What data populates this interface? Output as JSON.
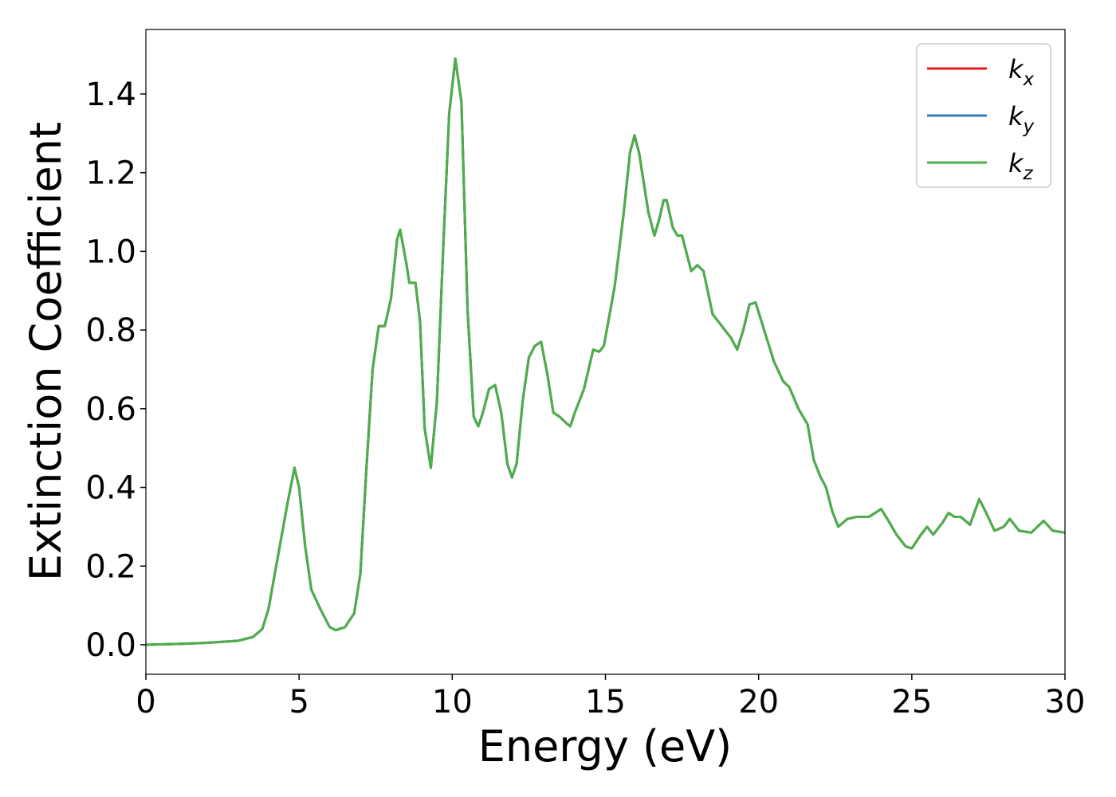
{
  "chart_data": {
    "type": "line",
    "xlabel": "Energy (eV)",
    "ylabel": "Extinction Coefficient",
    "xlim": [
      0,
      30
    ],
    "ylim": [
      -0.075,
      1.564
    ],
    "xticks": [
      0,
      5,
      10,
      15,
      20,
      25,
      30
    ],
    "yticks": [
      {
        "value": 0,
        "label": "0.0"
      },
      {
        "value": 0.2,
        "label": "0.2"
      },
      {
        "value": 0.4,
        "label": "0.4"
      },
      {
        "value": 0.6,
        "label": "0.6"
      },
      {
        "value": 0.8,
        "label": "0.8"
      },
      {
        "value": 1.0,
        "label": "1.0"
      },
      {
        "value": 1.2,
        "label": "1.2"
      },
      {
        "value": 1.4,
        "label": "1.4"
      }
    ],
    "legend": "upper right",
    "x": [
      0,
      1,
      2,
      3,
      3.5,
      3.8,
      4.0,
      4.3,
      4.6,
      4.85,
      5.0,
      5.2,
      5.4,
      5.7,
      6.0,
      6.2,
      6.5,
      6.8,
      7.0,
      7.2,
      7.4,
      7.6,
      7.8,
      8.0,
      8.2,
      8.3,
      8.5,
      8.6,
      8.8,
      8.95,
      9.1,
      9.3,
      9.5,
      9.7,
      9.9,
      10.1,
      10.3,
      10.5,
      10.7,
      10.85,
      11.0,
      11.2,
      11.4,
      11.6,
      11.8,
      11.95,
      12.1,
      12.3,
      12.5,
      12.7,
      12.9,
      13.1,
      13.3,
      13.5,
      13.7,
      13.85,
      14.0,
      14.3,
      14.6,
      14.8,
      14.95,
      15.3,
      15.6,
      15.8,
      15.95,
      16.1,
      16.4,
      16.6,
      16.75,
      16.9,
      17.0,
      17.2,
      17.35,
      17.5,
      17.8,
      18.0,
      18.2,
      18.5,
      18.8,
      19.1,
      19.3,
      19.5,
      19.7,
      19.9,
      20.1,
      20.5,
      20.8,
      21.0,
      21.3,
      21.6,
      21.8,
      22.0,
      22.2,
      22.4,
      22.6,
      22.9,
      23.2,
      23.6,
      23.8,
      24.0,
      24.2,
      24.5,
      24.8,
      25.0,
      25.3,
      25.5,
      25.7,
      26.0,
      26.2,
      26.4,
      26.6,
      26.9,
      27.2,
      27.4,
      27.7,
      28.0,
      28.2,
      28.5,
      28.9,
      29.1,
      29.3,
      29.6,
      30.0
    ],
    "series": [
      {
        "name": "kx",
        "color": "#e41a1c",
        "values": [
          0.0,
          0.002,
          0.005,
          0.01,
          0.02,
          0.04,
          0.09,
          0.22,
          0.35,
          0.45,
          0.4,
          0.25,
          0.14,
          0.09,
          0.045,
          0.037,
          0.045,
          0.08,
          0.18,
          0.45,
          0.7,
          0.81,
          0.81,
          0.88,
          1.03,
          1.055,
          0.97,
          0.92,
          0.92,
          0.82,
          0.55,
          0.45,
          0.62,
          1.0,
          1.35,
          1.49,
          1.38,
          0.85,
          0.58,
          0.555,
          0.59,
          0.65,
          0.66,
          0.59,
          0.46,
          0.425,
          0.46,
          0.62,
          0.73,
          0.76,
          0.77,
          0.69,
          0.59,
          0.58,
          0.565,
          0.555,
          0.59,
          0.65,
          0.75,
          0.745,
          0.76,
          0.91,
          1.1,
          1.25,
          1.295,
          1.25,
          1.1,
          1.04,
          1.08,
          1.13,
          1.13,
          1.06,
          1.04,
          1.04,
          0.95,
          0.965,
          0.95,
          0.84,
          0.81,
          0.78,
          0.75,
          0.8,
          0.865,
          0.87,
          0.82,
          0.72,
          0.67,
          0.655,
          0.6,
          0.56,
          0.47,
          0.43,
          0.4,
          0.34,
          0.3,
          0.32,
          0.325,
          0.325,
          0.335,
          0.345,
          0.32,
          0.28,
          0.25,
          0.245,
          0.28,
          0.3,
          0.28,
          0.31,
          0.335,
          0.325,
          0.325,
          0.305,
          0.37,
          0.34,
          0.29,
          0.3,
          0.32,
          0.29,
          0.285,
          0.3,
          0.315,
          0.29,
          0.285
        ]
      },
      {
        "name": "ky",
        "color": "#377eb8",
        "values": [
          0.0,
          0.002,
          0.005,
          0.01,
          0.02,
          0.04,
          0.09,
          0.22,
          0.35,
          0.45,
          0.4,
          0.25,
          0.14,
          0.09,
          0.045,
          0.037,
          0.045,
          0.08,
          0.18,
          0.45,
          0.7,
          0.81,
          0.81,
          0.88,
          1.03,
          1.055,
          0.97,
          0.92,
          0.92,
          0.82,
          0.55,
          0.45,
          0.62,
          1.0,
          1.35,
          1.49,
          1.38,
          0.85,
          0.58,
          0.555,
          0.59,
          0.65,
          0.66,
          0.59,
          0.46,
          0.425,
          0.46,
          0.62,
          0.73,
          0.76,
          0.77,
          0.69,
          0.59,
          0.58,
          0.565,
          0.555,
          0.59,
          0.65,
          0.75,
          0.745,
          0.76,
          0.91,
          1.1,
          1.25,
          1.295,
          1.25,
          1.1,
          1.04,
          1.08,
          1.13,
          1.13,
          1.06,
          1.04,
          1.04,
          0.95,
          0.965,
          0.95,
          0.84,
          0.81,
          0.78,
          0.75,
          0.8,
          0.865,
          0.87,
          0.82,
          0.72,
          0.67,
          0.655,
          0.6,
          0.56,
          0.47,
          0.43,
          0.4,
          0.34,
          0.3,
          0.32,
          0.325,
          0.325,
          0.335,
          0.345,
          0.32,
          0.28,
          0.25,
          0.245,
          0.28,
          0.3,
          0.28,
          0.31,
          0.335,
          0.325,
          0.325,
          0.305,
          0.37,
          0.34,
          0.29,
          0.3,
          0.32,
          0.29,
          0.285,
          0.3,
          0.315,
          0.29,
          0.285
        ]
      },
      {
        "name": "kz",
        "color": "#4daf4a",
        "values": [
          0.0,
          0.002,
          0.005,
          0.01,
          0.02,
          0.04,
          0.09,
          0.22,
          0.35,
          0.45,
          0.4,
          0.25,
          0.14,
          0.09,
          0.045,
          0.037,
          0.045,
          0.08,
          0.18,
          0.45,
          0.7,
          0.81,
          0.81,
          0.88,
          1.03,
          1.055,
          0.97,
          0.92,
          0.92,
          0.82,
          0.55,
          0.45,
          0.62,
          1.0,
          1.35,
          1.49,
          1.38,
          0.85,
          0.58,
          0.555,
          0.59,
          0.65,
          0.66,
          0.59,
          0.46,
          0.425,
          0.46,
          0.62,
          0.73,
          0.76,
          0.77,
          0.69,
          0.59,
          0.58,
          0.565,
          0.555,
          0.59,
          0.65,
          0.75,
          0.745,
          0.76,
          0.91,
          1.1,
          1.25,
          1.295,
          1.25,
          1.1,
          1.04,
          1.08,
          1.13,
          1.13,
          1.06,
          1.04,
          1.04,
          0.95,
          0.965,
          0.95,
          0.84,
          0.81,
          0.78,
          0.75,
          0.8,
          0.865,
          0.87,
          0.82,
          0.72,
          0.67,
          0.655,
          0.6,
          0.56,
          0.47,
          0.43,
          0.4,
          0.34,
          0.3,
          0.32,
          0.325,
          0.325,
          0.335,
          0.345,
          0.32,
          0.28,
          0.25,
          0.245,
          0.28,
          0.3,
          0.28,
          0.31,
          0.335,
          0.325,
          0.325,
          0.305,
          0.37,
          0.34,
          0.29,
          0.3,
          0.32,
          0.29,
          0.285,
          0.3,
          0.315,
          0.29,
          0.285
        ]
      }
    ]
  }
}
